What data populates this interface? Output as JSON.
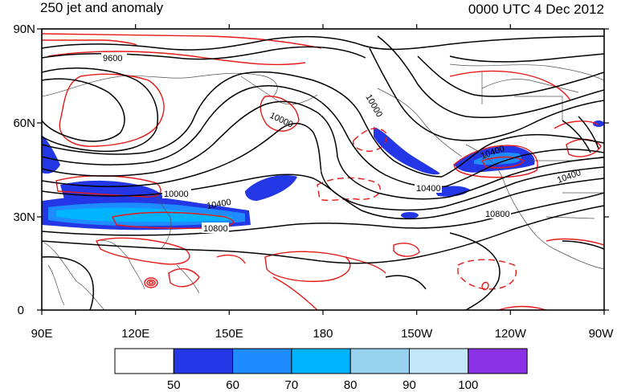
{
  "title": "250 jet and anomaly",
  "date": "0000 UTC 4 Dec 2012",
  "lat_labels": [
    "90N",
    "60N",
    "30N",
    "0"
  ],
  "lon_labels": [
    "90E",
    "120E",
    "150E",
    "180",
    "150W",
    "120W",
    "90W"
  ],
  "contour_labels": [
    "9600",
    "10000",
    "10000",
    "10000",
    "10400",
    "10400",
    "10400",
    "10400",
    "10800",
    "10800"
  ],
  "colorbar": {
    "labels": [
      "50",
      "60",
      "70",
      "80",
      "90",
      "100"
    ],
    "colors": [
      "#ffffff",
      "#2337e6",
      "#1e8cff",
      "#00b4ff",
      "#96d2f0",
      "#c3e6f8",
      "#8c32e6"
    ]
  },
  "colors": {
    "height_contours": "#000000",
    "anomaly_contours": "#e61919",
    "coastlines": "#505050"
  }
}
